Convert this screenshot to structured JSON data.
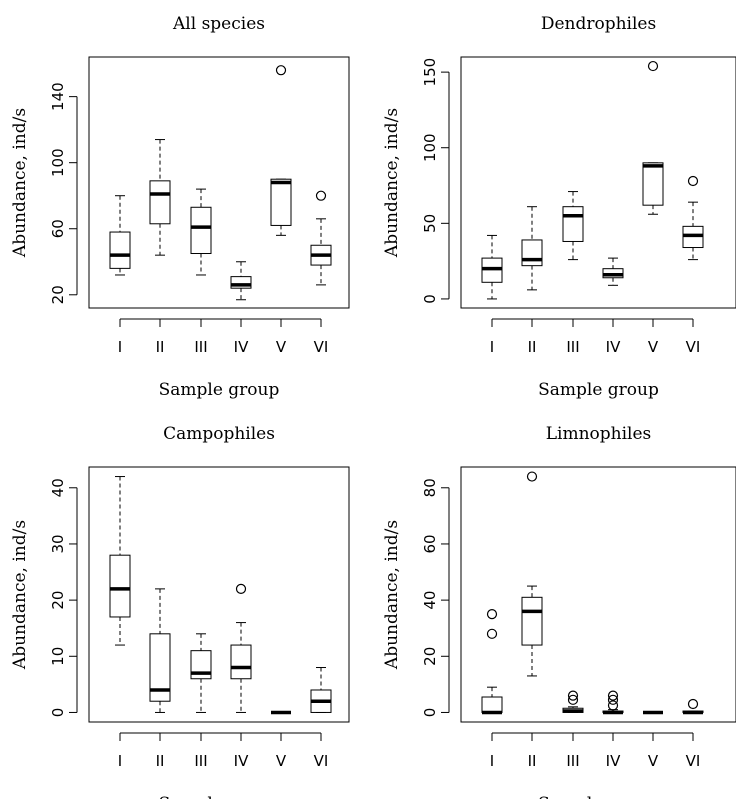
{
  "chart_data": [
    {
      "type": "boxplot",
      "title": "All species",
      "xlabel": "Sample group",
      "ylabel": "Abundance, ind/s",
      "categories": [
        "I",
        "II",
        "III",
        "IV",
        "V",
        "VI"
      ],
      "ylim": [
        12,
        164
      ],
      "yticks": [
        20,
        60,
        100,
        140
      ],
      "boxes": [
        {
          "min": 32,
          "q1": 36,
          "median": 44,
          "q3": 58,
          "max": 80,
          "outliers": []
        },
        {
          "min": 44,
          "q1": 63,
          "median": 81,
          "q3": 89,
          "max": 114,
          "outliers": []
        },
        {
          "min": 32,
          "q1": 45,
          "median": 61,
          "q3": 73,
          "max": 84,
          "outliers": []
        },
        {
          "min": 17,
          "q1": 24,
          "median": 26,
          "q3": 31,
          "max": 40,
          "outliers": []
        },
        {
          "min": 56,
          "q1": 62,
          "median": 88,
          "q3": 90,
          "max": 90,
          "outliers": [
            156
          ]
        },
        {
          "min": 26,
          "q1": 38,
          "median": 44,
          "q3": 50,
          "max": 66,
          "outliers": [
            80
          ]
        }
      ]
    },
    {
      "type": "boxplot",
      "title": "Dendrophiles",
      "xlabel": "Sample group",
      "ylabel": "Abundance, ind/s",
      "categories": [
        "I",
        "II",
        "III",
        "IV",
        "V",
        "VI"
      ],
      "ylim": [
        -6,
        160
      ],
      "yticks": [
        0,
        50,
        100,
        150
      ],
      "boxes": [
        {
          "min": 0,
          "q1": 11,
          "median": 20,
          "q3": 27,
          "max": 42,
          "outliers": []
        },
        {
          "min": 6,
          "q1": 22,
          "median": 26,
          "q3": 39,
          "max": 61,
          "outliers": []
        },
        {
          "min": 26,
          "q1": 38,
          "median": 55,
          "q3": 61,
          "max": 71,
          "outliers": []
        },
        {
          "min": 9,
          "q1": 14,
          "median": 16,
          "q3": 20,
          "max": 27,
          "outliers": []
        },
        {
          "min": 56,
          "q1": 62,
          "median": 88,
          "q3": 90,
          "max": 90,
          "outliers": [
            154
          ]
        },
        {
          "min": 26,
          "q1": 34,
          "median": 42,
          "q3": 48,
          "max": 64,
          "outliers": [
            78
          ]
        }
      ]
    },
    {
      "type": "boxplot",
      "title": "Campophiles",
      "xlabel": "Sample group",
      "ylabel": "Abundance, ind/s",
      "categories": [
        "I",
        "II",
        "III",
        "IV",
        "V",
        "VI"
      ],
      "ylim": [
        -1.7,
        43.7
      ],
      "yticks": [
        0,
        10,
        20,
        30,
        40
      ],
      "boxes": [
        {
          "min": 12,
          "q1": 17,
          "median": 22,
          "q3": 28,
          "max": 42,
          "outliers": []
        },
        {
          "min": 0,
          "q1": 2,
          "median": 4,
          "q3": 14,
          "max": 22,
          "outliers": []
        },
        {
          "min": 0,
          "q1": 6,
          "median": 7,
          "q3": 11,
          "max": 14,
          "outliers": []
        },
        {
          "min": 0,
          "q1": 6,
          "median": 8,
          "q3": 12,
          "max": 16,
          "outliers": [
            22
          ]
        },
        {
          "min": 0,
          "q1": 0,
          "median": 0,
          "q3": 0,
          "max": 0,
          "outliers": []
        },
        {
          "min": 0,
          "q1": 0,
          "median": 2,
          "q3": 4,
          "max": 8,
          "outliers": []
        }
      ]
    },
    {
      "type": "boxplot",
      "title": "Limnophiles",
      "xlabel": "Sample group",
      "ylabel": "Abundance, ind/s",
      "categories": [
        "I",
        "II",
        "III",
        "IV",
        "V",
        "VI"
      ],
      "ylim": [
        -3.4,
        87.4
      ],
      "yticks": [
        0,
        20,
        40,
        60,
        80
      ],
      "boxes": [
        {
          "min": 0,
          "q1": 0,
          "median": 0,
          "q3": 5.5,
          "max": 9,
          "outliers": [
            28,
            35
          ]
        },
        {
          "min": 13,
          "q1": 24,
          "median": 36,
          "q3": 41,
          "max": 45,
          "outliers": [
            84
          ]
        },
        {
          "min": 0,
          "q1": 0,
          "median": 0.5,
          "q3": 1.5,
          "max": 2,
          "outliers": [
            4.5,
            6
          ]
        },
        {
          "min": 0,
          "q1": 0,
          "median": 0,
          "q3": 0.5,
          "max": 1,
          "outliers": [
            2.5,
            4.5,
            6
          ]
        },
        {
          "min": 0,
          "q1": 0,
          "median": 0,
          "q3": 0,
          "max": 0,
          "outliers": []
        },
        {
          "min": 0,
          "q1": 0,
          "median": 0,
          "q3": 0.5,
          "max": 0.5,
          "outliers": [
            3
          ]
        }
      ]
    }
  ]
}
